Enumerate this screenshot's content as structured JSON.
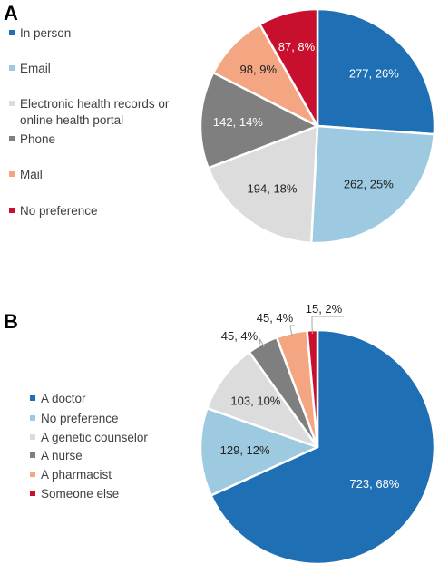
{
  "chart_data": [
    {
      "type": "pie",
      "panel_label": "A",
      "legend_position": "left",
      "slices": [
        {
          "label": "In person",
          "value": 277,
          "percent": "26%",
          "color": "#1f6fb4"
        },
        {
          "label": "Email",
          "value": 262,
          "percent": "25%",
          "color": "#9ecae1"
        },
        {
          "label": "Electronic health records or online health portal",
          "legend_lines": [
            "Electronic health records or",
            "online health portal"
          ],
          "value": 194,
          "percent": "18%",
          "color": "#dcdcdc"
        },
        {
          "label": "Phone",
          "value": 142,
          "percent": "14%",
          "color": "#7f7f7f"
        },
        {
          "label": "Mail",
          "value": 98,
          "percent": "9%",
          "color": "#f4a582"
        },
        {
          "label": "No preference",
          "value": 87,
          "percent": "8%",
          "color": "#c8102e"
        }
      ]
    },
    {
      "type": "pie",
      "panel_label": "B",
      "legend_position": "left",
      "slices": [
        {
          "label": "A doctor",
          "value": 723,
          "percent": "68%",
          "color": "#1f6fb4"
        },
        {
          "label": "No preference",
          "value": 129,
          "percent": "12%",
          "color": "#9ecae1"
        },
        {
          "label": "A genetic counselor",
          "value": 103,
          "percent": "10%",
          "color": "#dcdcdc"
        },
        {
          "label": "A nurse",
          "value": 45,
          "percent": "4%",
          "color": "#7f7f7f"
        },
        {
          "label": "A pharmacist",
          "value": 45,
          "percent": "4%",
          "color": "#f4a582"
        },
        {
          "label": "Someone else",
          "value": 15,
          "percent": "2%",
          "color": "#c8102e"
        }
      ]
    }
  ]
}
